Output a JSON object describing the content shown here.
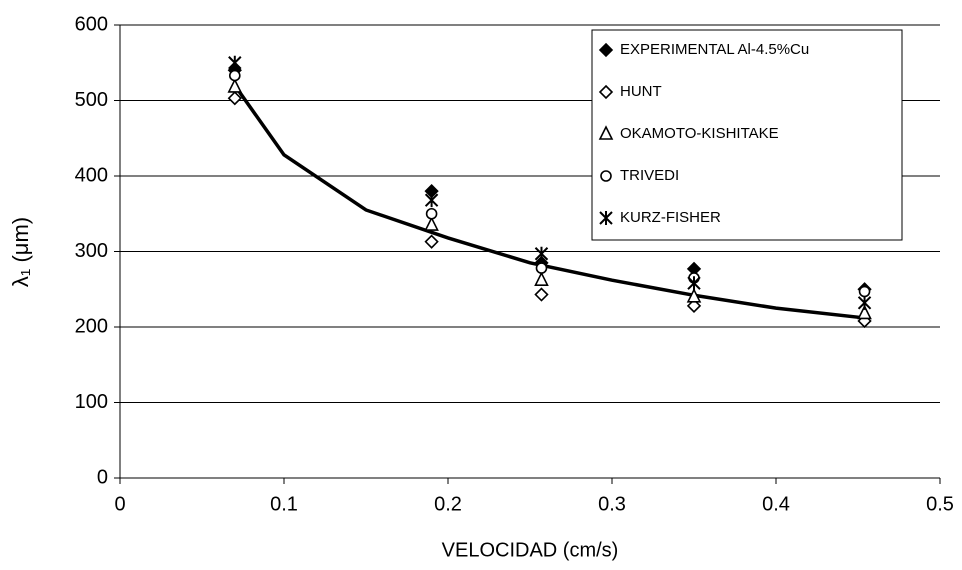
{
  "chart_data": {
    "type": "scatter",
    "x_label": "VELOCIDAD (cm/s)",
    "y_label": "λ₁ (μm)",
    "xlim": [
      0,
      0.5
    ],
    "xticks": [
      0,
      0.1,
      0.2,
      0.3,
      0.4,
      0.5
    ],
    "ylim": [
      0,
      600
    ],
    "yticks": [
      0,
      100,
      200,
      300,
      400,
      500,
      600
    ],
    "grid": true,
    "legend": "top-right",
    "series": [
      {
        "name": "EXPERIMENTAL Al-4.5%Cu",
        "color": "#000000",
        "marker": "diamond-filled",
        "x": [
          0.07,
          0.19,
          0.257,
          0.35,
          0.454
        ],
        "values": [
          540,
          380,
          285,
          277,
          250
        ]
      },
      {
        "name": "HUNT",
        "color": "#000000",
        "marker": "diamond-open",
        "x": [
          0.07,
          0.19,
          0.257,
          0.35,
          0.454
        ],
        "values": [
          503,
          313,
          243,
          228,
          208
        ]
      },
      {
        "name": "OKAMOTO-KISHITAKE",
        "color": "#000000",
        "marker": "triangle-open",
        "x": [
          0.07,
          0.19,
          0.257,
          0.35,
          0.454
        ],
        "values": [
          518,
          335,
          262,
          240,
          218
        ]
      },
      {
        "name": "TRIVEDI",
        "color": "#000000",
        "marker": "circle-open",
        "x": [
          0.07,
          0.19,
          0.257,
          0.35,
          0.454
        ],
        "values": [
          533,
          350,
          278,
          265,
          247
        ]
      },
      {
        "name": "KURZ-FISHER",
        "color": "#000000",
        "marker": "asterisk",
        "x": [
          0.07,
          0.19,
          0.257,
          0.35,
          0.454
        ],
        "values": [
          550,
          368,
          297,
          258,
          232
        ]
      }
    ],
    "fit": {
      "color": "#000000",
      "x": [
        0.07,
        0.1,
        0.15,
        0.2,
        0.25,
        0.3,
        0.35,
        0.4,
        0.454
      ],
      "values": [
        520,
        428,
        355,
        318,
        285,
        262,
        242,
        225,
        212
      ]
    }
  }
}
